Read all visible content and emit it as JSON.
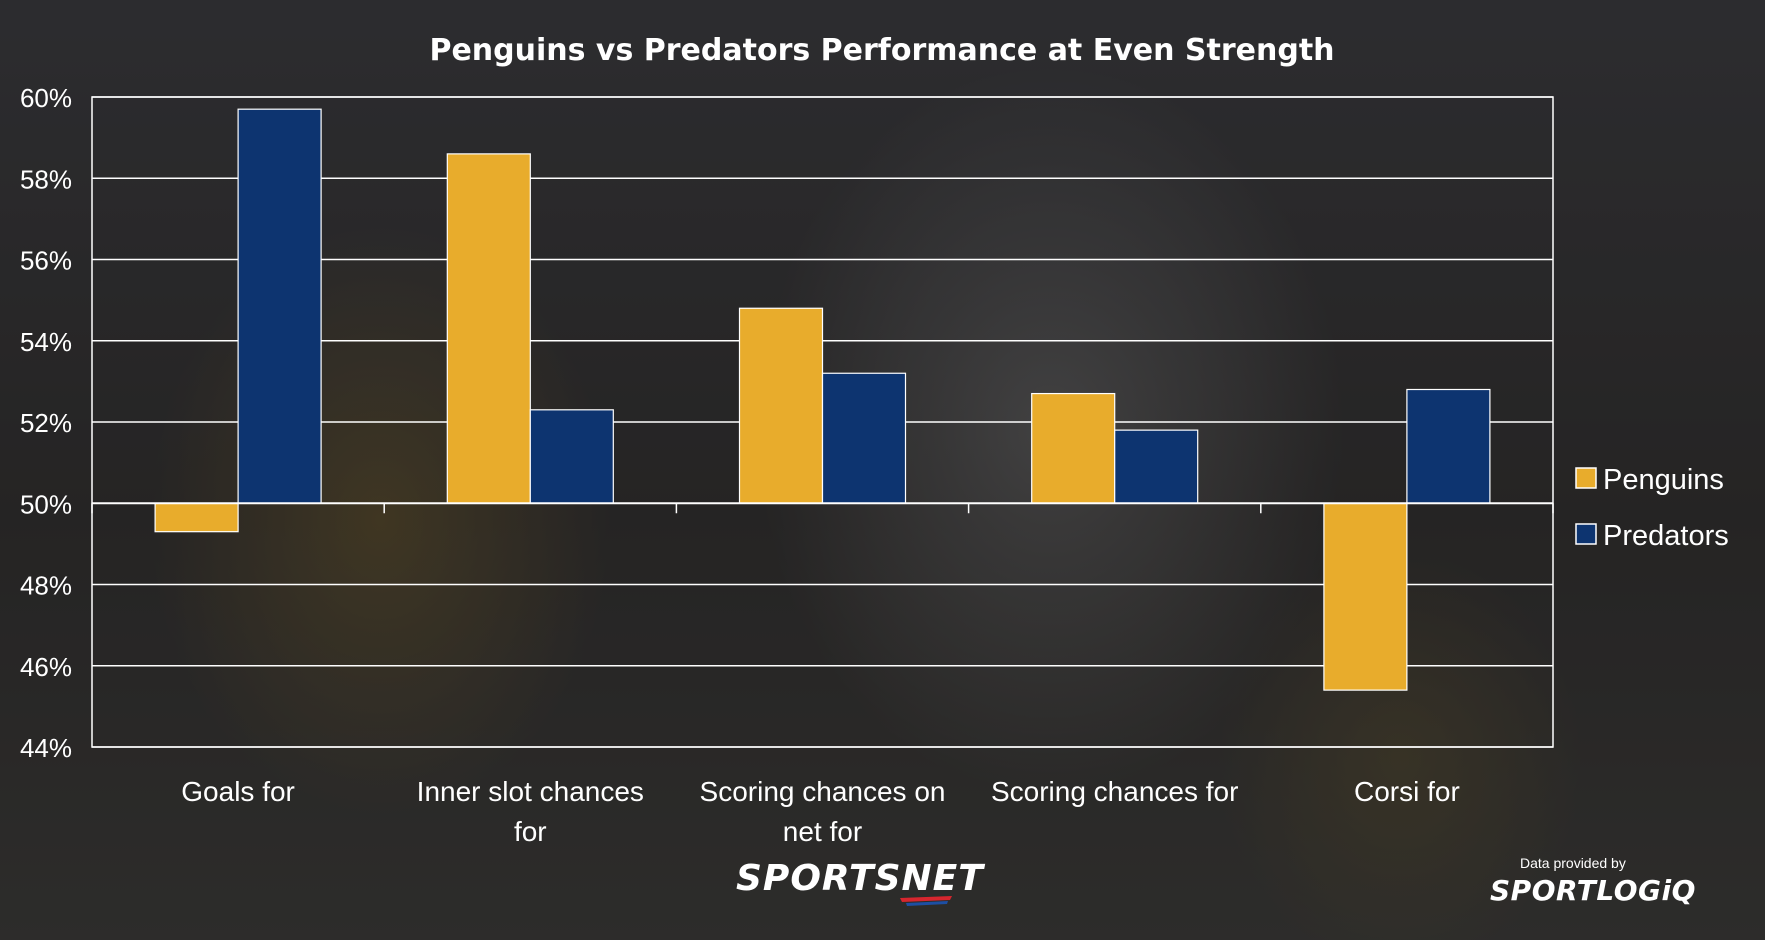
{
  "chart_data": {
    "type": "bar",
    "title": "Penguins vs Predators Performance at Even Strength",
    "categories": [
      "Goals for",
      "Inner slot chances for",
      "Scoring chances on net for",
      "Scoring chances for",
      "Corsi for"
    ],
    "category_lines": [
      [
        "Goals for"
      ],
      [
        "Inner slot chances",
        "for"
      ],
      [
        "Scoring chances on",
        "net for"
      ],
      [
        "Scoring chances for"
      ],
      [
        "Corsi for"
      ]
    ],
    "series": [
      {
        "name": "Penguins",
        "color": "#e8ac2c",
        "values": [
          49.3,
          58.6,
          54.8,
          52.7,
          45.4
        ]
      },
      {
        "name": "Predators",
        "color": "#0d3470",
        "values": [
          59.7,
          52.3,
          53.2,
          51.8,
          52.8
        ]
      }
    ],
    "baseline": 50,
    "ylim": [
      44,
      60
    ],
    "yticks": [
      "44%",
      "46%",
      "48%",
      "50%",
      "52%",
      "54%",
      "56%",
      "58%",
      "60%"
    ],
    "grid": true,
    "legend_position": "right"
  },
  "branding": {
    "broadcaster": "SPORTSNET",
    "provided_by": "Data provided by",
    "provider": "SPORTLOGiQ"
  }
}
